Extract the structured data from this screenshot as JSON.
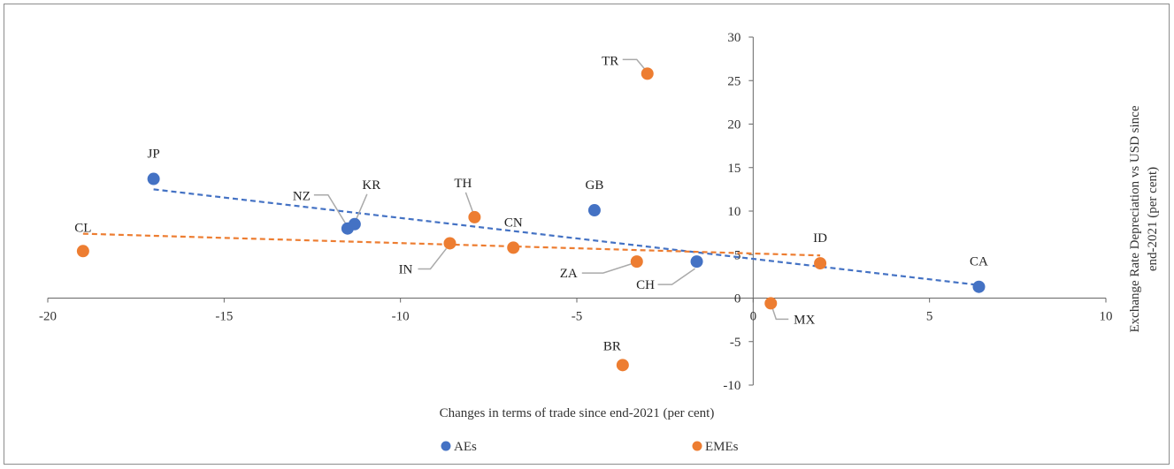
{
  "chart_data": {
    "type": "scatter",
    "title": "",
    "xlabel": "Changes in terms of trade since end-2021 (per cent)",
    "ylabel_lines": [
      "Exchange Rate Depreciation vs USD since",
      "end-2021 (per cent)"
    ],
    "xlim": [
      -20,
      10
    ],
    "ylim": [
      -10,
      30
    ],
    "xticks": [
      "-20",
      "-15",
      "-10",
      "-5",
      "0",
      "5",
      "10"
    ],
    "yticks": [
      "30",
      "25",
      "20",
      "15",
      "10",
      "5",
      "0",
      "-5",
      "-10"
    ],
    "legend_position": "bottom",
    "grid": false,
    "series": [
      {
        "name": "AEs",
        "color": "#4472c4",
        "points": [
          {
            "label": "JP",
            "x": -17.0,
            "y": 13.7
          },
          {
            "label": "NZ",
            "x": -11.5,
            "y": 8.0
          },
          {
            "label": "KR",
            "x": -11.3,
            "y": 8.5
          },
          {
            "label": "GB",
            "x": -4.5,
            "y": 10.1
          },
          {
            "label": "CH",
            "x": -1.6,
            "y": 4.2
          },
          {
            "label": "CA",
            "x": 6.4,
            "y": 1.3
          }
        ],
        "trend": {
          "x": [
            -17.0,
            6.4
          ],
          "y": [
            12.5,
            1.5
          ]
        }
      },
      {
        "name": "EMEs",
        "color": "#ed7d31",
        "points": [
          {
            "label": "CL",
            "x": -19.0,
            "y": 5.4
          },
          {
            "label": "IN",
            "x": -8.6,
            "y": 6.3
          },
          {
            "label": "TH",
            "x": -7.9,
            "y": 9.3
          },
          {
            "label": "CN",
            "x": -6.8,
            "y": 5.8
          },
          {
            "label": "TR",
            "x": -3.0,
            "y": 25.8
          },
          {
            "label": "BR",
            "x": -3.7,
            "y": -7.7
          },
          {
            "label": "ZA",
            "x": -3.3,
            "y": 4.2
          },
          {
            "label": "MX",
            "x": 0.5,
            "y": -0.6
          },
          {
            "label": "ID",
            "x": 1.9,
            "y": 4.0
          }
        ],
        "trend": {
          "x": [
            -19.0,
            1.9
          ],
          "y": [
            7.4,
            4.9
          ]
        }
      }
    ]
  }
}
